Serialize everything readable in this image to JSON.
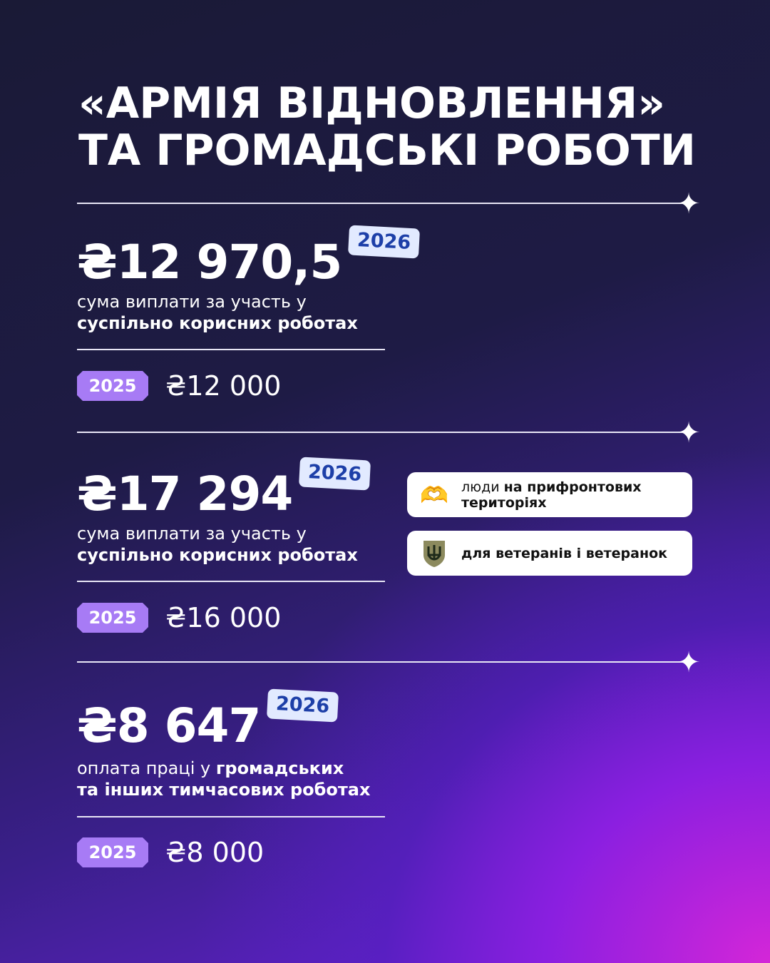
{
  "title": {
    "line1": "«АРМІЯ ВІДНОВЛЕННЯ»",
    "line2": "ТА ГРОМАДСЬКІ РОБОТИ"
  },
  "sections": [
    {
      "amount_2026": "₴12 970,5",
      "badge_2026": "2026",
      "desc_regular": "сума виплати за участь у",
      "desc_bold": "суспільно корисних роботах",
      "badge_2025": "2025",
      "amount_2025": "₴12 000"
    },
    {
      "amount_2026": "₴17 294",
      "badge_2026": "2026",
      "desc_regular": "сума виплати за участь у",
      "desc_bold": "суспільно корисних роботах",
      "badge_2025": "2025",
      "amount_2025": "₴16 000"
    },
    {
      "amount_2026": "₴8 647",
      "badge_2026": "2026",
      "desc_regular": "оплата праці у ",
      "desc_bold": "громадських",
      "desc_line2": "та інших тимчасових роботах",
      "badge_2025": "2025",
      "amount_2025": "₴8 000"
    }
  ],
  "cards": [
    {
      "icon": "heart-hands-icon",
      "text_regular": "люди ",
      "text_bold": "на прифронтових територіях"
    },
    {
      "icon": "trident-shield-icon",
      "text_bold": "для ветеранів і ветеранок"
    }
  ],
  "colors": {
    "badge_2026_bg": "#e2eaff",
    "badge_2026_text": "#1d3fa8",
    "badge_2025_bg": "#a77bf5"
  }
}
